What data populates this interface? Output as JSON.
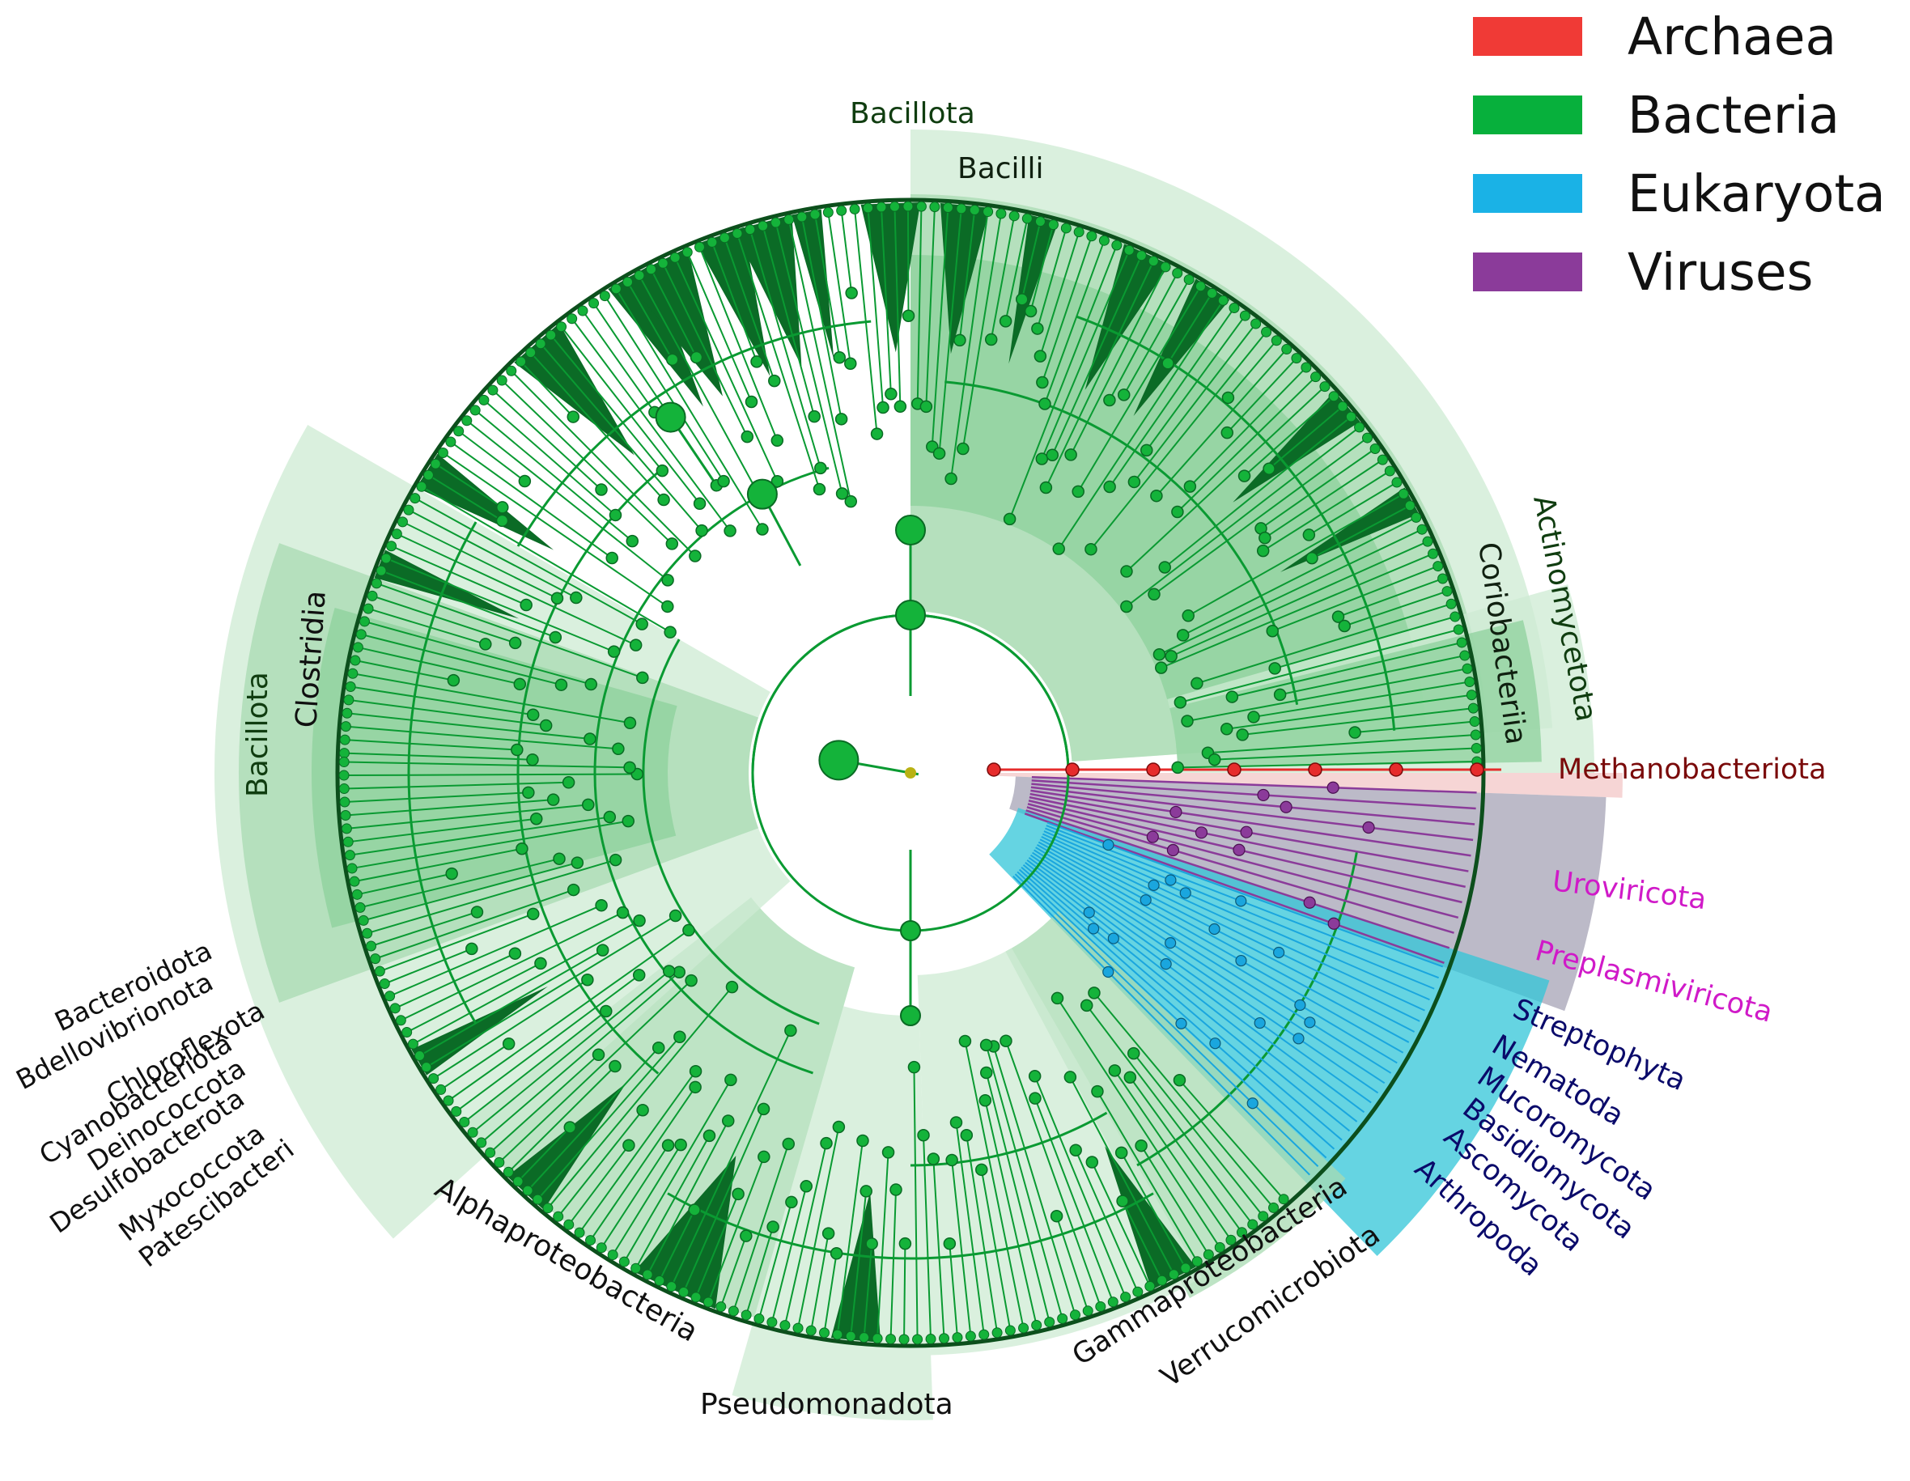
{
  "legend": [
    {
      "label": "Archaea",
      "color": "#f03a36"
    },
    {
      "label": "Bacteria",
      "color": "#07b03c"
    },
    {
      "label": "Eukaryota",
      "color": "#1ab2e6"
    },
    {
      "label": "Viruses",
      "color": "#8b3b9a"
    }
  ],
  "colors": {
    "branch": "#0a9a32",
    "node_fill": "#14b33a",
    "leaf_dark": "#0b6b26",
    "shade_light": "#cdebd3",
    "shade_mid": "#a8dbb2",
    "shade_dark": "#8ed29c",
    "archaea": "#e62c2c",
    "virus": "#8b3b9a",
    "virus_shade": "#a6a3b6",
    "euk": "#1aa6de",
    "euk_shade": "#31c6d8",
    "root": "#b9b214"
  },
  "labels": {
    "bacillota_top": "Bacillota",
    "bacilli": "Bacilli",
    "actinomycetota": "Actinomycetota",
    "coriobacteriia": "Coriobacteriia",
    "methanobacteriota": "Methanobacteriota",
    "uroviricota": "Uroviricota",
    "preplasmiviricota": "Preplasmiviricota",
    "streptophyta": "Streptophyta",
    "nematoda": "Nematoda",
    "mucoromycota": "Mucoromycota",
    "basidiomycota": "Basidiomycota",
    "ascomycota": "Ascomycota",
    "arthropoda": "Arthropoda",
    "verrucomicrobiota": "Verrucomicrobiota",
    "gammaproteobacteria": "Gammaproteobacteria",
    "pseudomonadota": "Pseudomonadota",
    "alphaproteobacteria": "Alphaproteobacteria",
    "bacillota_left": "Bacillota",
    "clostridia": "Clostridia",
    "bacteroidota": "Bacteroidota",
    "bdellovibrionota": "Bdellovibrionota",
    "chloroflexota": "Chloroflexota",
    "cyanobacteriota": "Cyanobacteriota",
    "deinococcota": "Deinococcota",
    "desulfobacterota": "Desulfobacterota",
    "myxococcota": "Myxococcota",
    "patescibacteri": "Patescibacteri"
  }
}
